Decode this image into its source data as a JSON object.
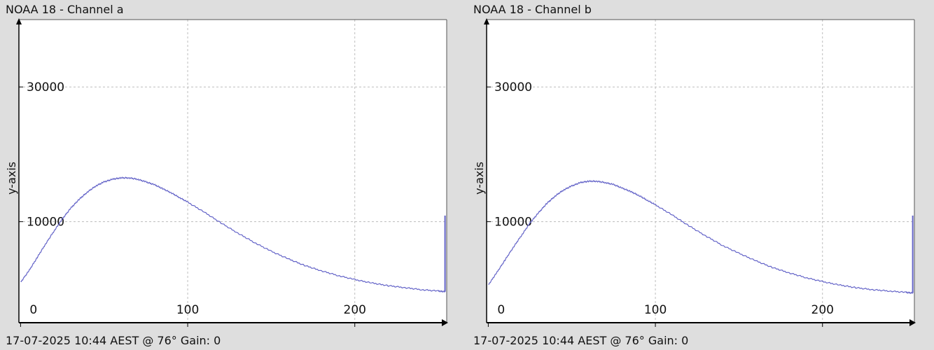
{
  "chart_data": [
    {
      "type": "line",
      "title": "NOAA 18 - Channel a",
      "footer": "17-07-2025 10:44 AEST @ 76° Gain: 0\u0001",
      "xlabel": "",
      "ylabel": "y-axis",
      "xlim": [
        -1,
        255
      ],
      "ylim": [
        -5000,
        40000
      ],
      "xticks": [
        0,
        100,
        200
      ],
      "yticks": [
        10000,
        30000
      ],
      "grid": true,
      "legend": "none",
      "series_color": "#6464c8",
      "curve": {
        "x": [
          0,
          5,
          10,
          15,
          20,
          25,
          30,
          35,
          40,
          45,
          50,
          55,
          60,
          65,
          70,
          75,
          80,
          85,
          90,
          95,
          100,
          110,
          120,
          130,
          140,
          150,
          160,
          170,
          180,
          190,
          200,
          210,
          220,
          230,
          240,
          250,
          254
        ],
        "y": [
          1000,
          2700,
          4700,
          6700,
          8600,
          10400,
          12000,
          13300,
          14400,
          15300,
          15900,
          16300,
          16500,
          16500,
          16300,
          15900,
          15500,
          14900,
          14300,
          13600,
          12900,
          11400,
          9800,
          8300,
          6900,
          5600,
          4500,
          3500,
          2700,
          2000,
          1400,
          900,
          500,
          200,
          -100,
          -300,
          -400
        ]
      },
      "spike": {
        "x": 254,
        "y_from": -400,
        "y_to": 10900
      }
    },
    {
      "type": "line",
      "title": "NOAA 18 - Channel b",
      "footer": "17-07-2025 10:44 AEST @ 76° Gain: 0\u0001",
      "xlabel": "",
      "ylabel": "y-axis",
      "xlim": [
        -1,
        255
      ],
      "ylim": [
        -5000,
        40000
      ],
      "xticks": [
        0,
        100,
        200
      ],
      "yticks": [
        10000,
        30000
      ],
      "grid": true,
      "legend": "none",
      "series_color": "#6464c8",
      "curve": {
        "x": [
          0,
          5,
          10,
          15,
          20,
          25,
          30,
          35,
          40,
          45,
          50,
          55,
          60,
          65,
          70,
          75,
          80,
          85,
          90,
          95,
          100,
          110,
          120,
          130,
          140,
          150,
          160,
          170,
          180,
          190,
          200,
          210,
          220,
          230,
          240,
          250,
          254
        ],
        "y": [
          600,
          2400,
          4300,
          6200,
          8000,
          9800,
          11300,
          12700,
          13800,
          14700,
          15300,
          15800,
          16000,
          16000,
          15800,
          15500,
          15000,
          14500,
          13900,
          13200,
          12500,
          11000,
          9400,
          7900,
          6500,
          5300,
          4200,
          3200,
          2400,
          1700,
          1100,
          600,
          200,
          -100,
          -300,
          -500,
          -600
        ]
      },
      "spike": {
        "x": 254,
        "y_from": -600,
        "y_to": 10900
      }
    }
  ]
}
